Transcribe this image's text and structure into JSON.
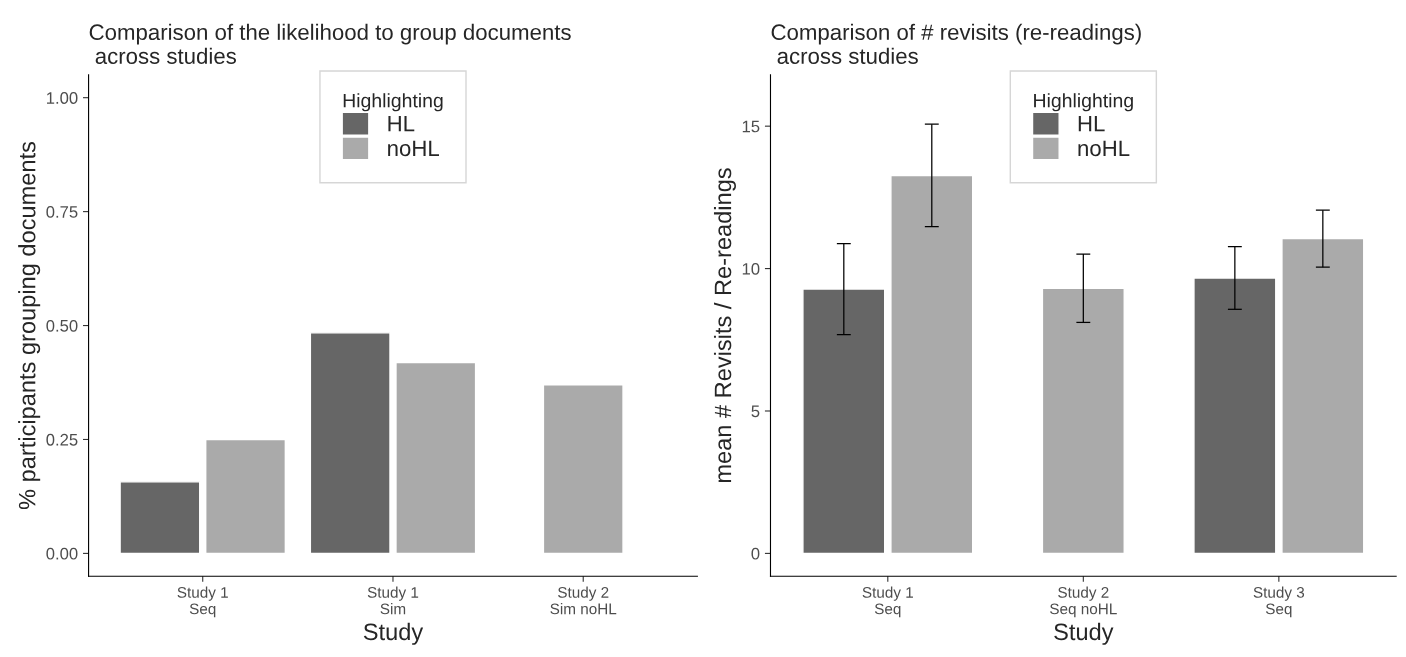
{
  "chart_data": [
    {
      "type": "bar",
      "title": "Comparison of the likelihood to group documents\n across studies",
      "xlabel": "Study",
      "ylabel": "% participants grouping documents",
      "legend_title": "Highlighting",
      "legend": "top",
      "grid": false,
      "categories": [
        "Study 1\nSeq",
        "Study 1\nSim",
        "Study 2\nSim noHL"
      ],
      "series": [
        {
          "name": "HL",
          "color": "#666666",
          "values": [
            0.157,
            0.484,
            null
          ]
        },
        {
          "name": "noHL",
          "color": "#aaaaaa",
          "values": [
            0.25,
            0.419,
            0.37
          ]
        }
      ],
      "ylim": [
        -0.05,
        1.05
      ],
      "yticks": [
        {
          "value": 0,
          "label": "0.00"
        },
        {
          "value": 0.25,
          "label": "0.25"
        },
        {
          "value": 0.5,
          "label": "0.50"
        },
        {
          "value": 0.75,
          "label": "0.75"
        },
        {
          "value": 1,
          "label": "1.00"
        }
      ]
    },
    {
      "type": "bar",
      "title": "Comparison of # revisits (re-readings)\n across studies",
      "xlabel": "Study",
      "ylabel": "mean # Revisits / Re-readings",
      "legend_title": "Highlighting",
      "legend": "top",
      "grid": false,
      "categories": [
        "Study 1\nSeq",
        "Study 2\nSeq noHL",
        "Study 3\nSeq"
      ],
      "series": [
        {
          "name": "HL",
          "color": "#666666",
          "values": [
            9.28,
            null,
            9.67
          ],
          "errors": [
            1.6,
            null,
            1.1
          ]
        },
        {
          "name": "noHL",
          "color": "#aaaaaa",
          "values": [
            13.27,
            9.31,
            11.05
          ],
          "errors": [
            1.8,
            1.2,
            1.0
          ]
        }
      ],
      "ylim": [
        -0.8,
        16.8
      ],
      "yticks": [
        0,
        5,
        10,
        15
      ]
    }
  ]
}
